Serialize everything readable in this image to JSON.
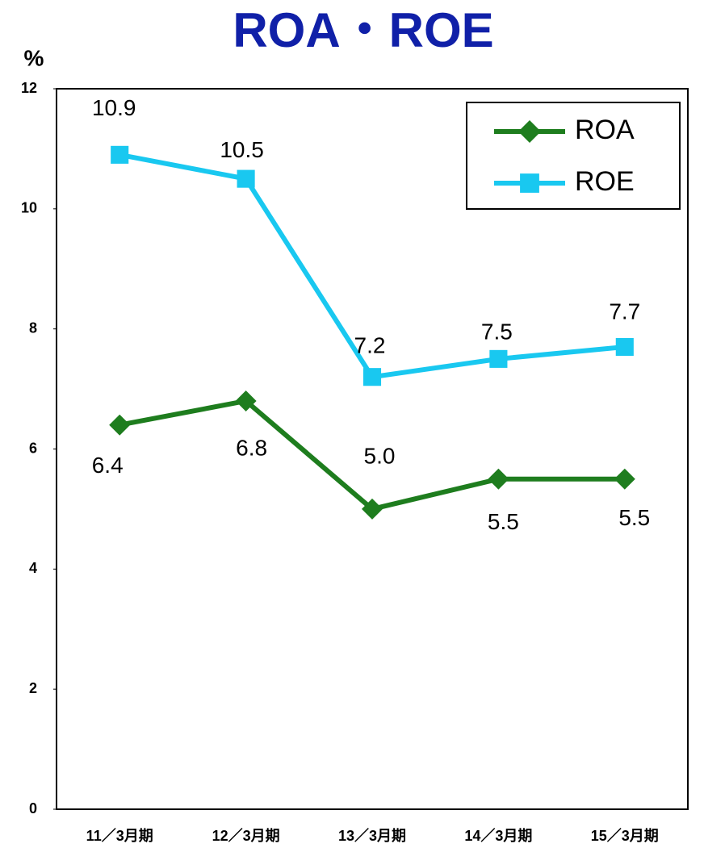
{
  "chart_data": {
    "type": "line",
    "title": "ROA・ROE",
    "y_label": "%",
    "categories": [
      "11／3月期",
      "12／3月期",
      "13／3月期",
      "14／3月期",
      "15／3月期"
    ],
    "series": [
      {
        "name": "ROA",
        "color": "#1e7d1e",
        "marker": "diamond",
        "values": [
          6.4,
          6.8,
          5.0,
          5.5,
          5.5
        ],
        "value_labels": [
          "6.4",
          "6.8",
          "5.0",
          "5.5",
          "5.5"
        ]
      },
      {
        "name": "ROE",
        "color": "#19c8f0",
        "marker": "square",
        "values": [
          10.9,
          10.5,
          7.2,
          7.5,
          7.7
        ],
        "value_labels": [
          "10.9",
          "10.5",
          "7.2",
          "7.5",
          "7.7"
        ]
      }
    ],
    "ylim": [
      0,
      12
    ],
    "yticks": [
      0,
      2,
      4,
      6,
      8,
      10,
      12
    ],
    "grid": false,
    "legend": "upper right"
  }
}
